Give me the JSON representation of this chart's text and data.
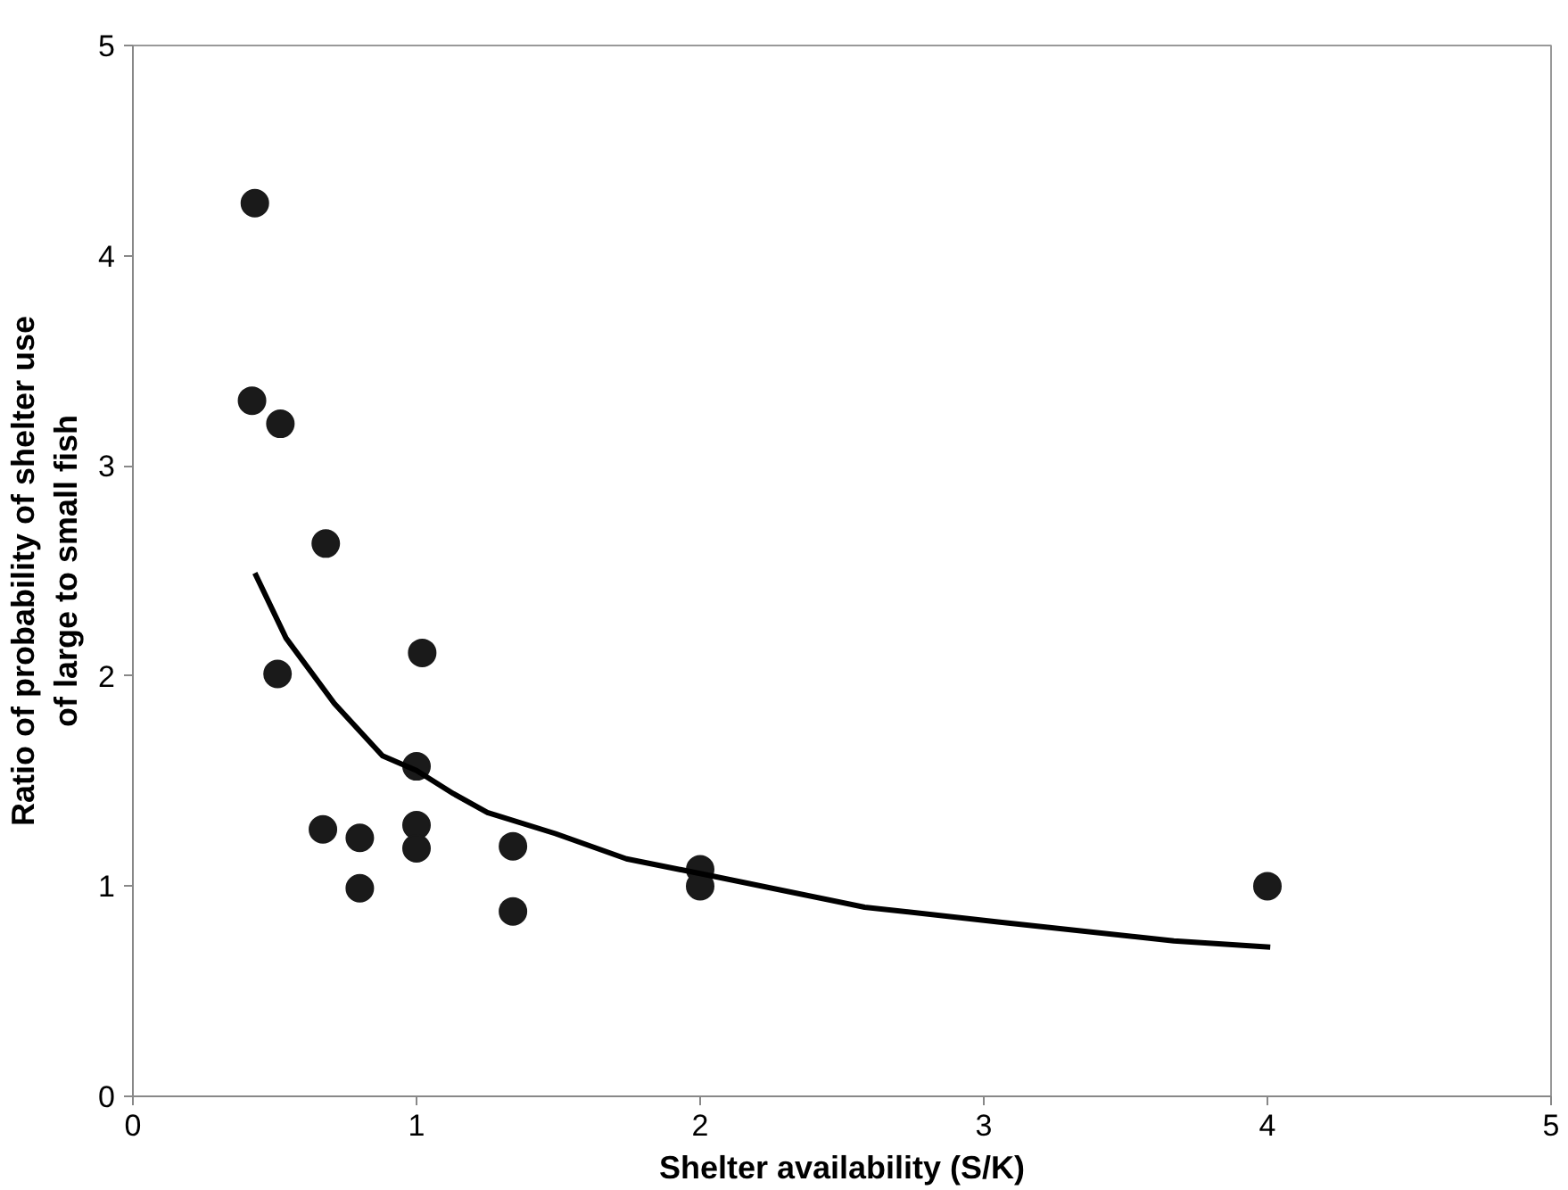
{
  "chart_data": {
    "type": "scatter",
    "xlabel": "Shelter availability (S/K)",
    "ylabel": "Ratio of probability of shelter use\nof large to small fish",
    "xlim": [
      0,
      5
    ],
    "ylim": [
      0,
      5
    ],
    "xticks": [
      0,
      1,
      2,
      3,
      4,
      5
    ],
    "yticks": [
      0,
      1,
      2,
      3,
      4,
      5
    ],
    "grid": false,
    "marker": "circle",
    "series": [
      {
        "color": "#1a1a1a",
        "x": [
          0.43,
          0.42,
          0.52,
          0.68,
          0.51,
          1.02,
          1.0,
          0.67,
          0.8,
          0.8,
          1.0,
          1.0,
          1.34,
          1.34,
          2.0,
          2.0,
          4.0
        ],
        "values": [
          4.25,
          3.31,
          3.2,
          2.63,
          2.01,
          2.11,
          1.57,
          1.27,
          1.23,
          0.99,
          1.29,
          1.18,
          1.19,
          0.88,
          1.08,
          1.0,
          1.0
        ]
      },
      {
        "type": "line",
        "color": "#000000",
        "line_style": "solid",
        "marker": "none",
        "x": [
          0.43,
          0.54,
          0.71,
          0.88,
          1.0,
          1.13,
          1.25,
          1.49,
          1.74,
          2.0,
          2.58,
          3.05,
          3.67,
          4.01
        ],
        "values": [
          2.49,
          2.18,
          1.87,
          1.62,
          1.55,
          1.44,
          1.35,
          1.25,
          1.13,
          1.06,
          0.9,
          0.83,
          0.74,
          0.71
        ]
      }
    ]
  }
}
